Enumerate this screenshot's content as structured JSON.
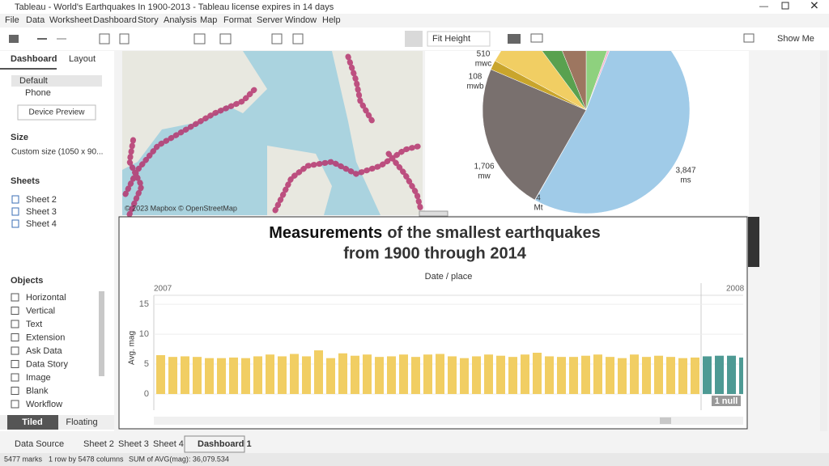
{
  "window_title": "Tableau - World's Earthquakes In 1900-2013 - Tableau license expires in 14 days",
  "menu": [
    "File",
    "Data",
    "Worksheet",
    "Dashboard",
    "Story",
    "Analysis",
    "Map",
    "Format",
    "Server",
    "Window",
    "Help"
  ],
  "toolbar": {
    "fit": "Fit Height",
    "show_me": "Show Me"
  },
  "left_panel": {
    "tabs": [
      "Dashboard",
      "Layout"
    ],
    "devices": [
      "Default",
      "Phone"
    ],
    "device_preview": "Device Preview",
    "size_heading": "Size",
    "size_value": "Custom size (1050 x 90...",
    "sheets_heading": "Sheets",
    "sheets": [
      "Sheet 2",
      "Sheet 3",
      "Sheet 4"
    ],
    "objects_heading": "Objects",
    "objects": [
      "Horizontal",
      "Vertical",
      "Text",
      "Extension",
      "Ask Data",
      "Data Story",
      "Image",
      "Blank",
      "Workflow"
    ],
    "layout_modes": [
      "Tiled",
      "Floating"
    ]
  },
  "map": {
    "credit": "© 2023 Mapbox © OpenStreetMap"
  },
  "chart_data": [
    {
      "type": "pie",
      "categories": [
        null,
        null,
        "ms",
        "Mt",
        "mw",
        "mwb",
        "mwc",
        null,
        null
      ],
      "values": [
        400,
        40,
        3847,
        4,
        1706,
        108,
        510,
        300,
        450
      ],
      "value_labels": [
        null,
        null,
        "3,847",
        "4",
        "1,706",
        "108",
        "510",
        null,
        null
      ],
      "colors": [
        "#8ed17e",
        "#f2b6cf",
        "#a0cbe8",
        "#d4a6c8",
        "#79706e",
        "#c9a52c",
        "#f1ce63",
        "#59a14f",
        "#9d7660"
      ]
    },
    {
      "type": "bar",
      "title": [
        "Measurements",
        "of the smallest earthquakes",
        "from 1900 through 2014"
      ],
      "x_title": "Date / place",
      "y_title": "Avg. mag",
      "ylim": [
        -2.7,
        16.5
      ],
      "yticks": [
        0,
        5,
        10,
        15
      ],
      "groups": [
        {
          "label": "2007",
          "color": "#f1ce63",
          "values": [
            6.5,
            6.2,
            6.3,
            6.2,
            6.0,
            6.0,
            6.1,
            6.0,
            6.3,
            6.6,
            6.3,
            6.7,
            6.3,
            7.3,
            6.0,
            6.8,
            6.4,
            6.6,
            6.2,
            6.3,
            6.6,
            6.2,
            6.6,
            6.7,
            6.3,
            6.0,
            6.3,
            6.6,
            6.4,
            6.2,
            6.6,
            6.9,
            6.3,
            6.2,
            6.2,
            6.4,
            6.6,
            6.2,
            6.0,
            6.6,
            6.2,
            6.4,
            6.2,
            6.0,
            6.1
          ]
        },
        {
          "label": "2008",
          "color": "#4e9a94",
          "values": [
            6.3,
            6.4,
            6.4,
            6.1
          ]
        }
      ],
      "null_indicator": "1 null"
    }
  ],
  "tabs": [
    "Data Source",
    "Sheet 2",
    "Sheet 3",
    "Sheet 4",
    "Dashboard 1"
  ],
  "status": [
    "5477 marks",
    "1 row by 5478 columns",
    "SUM of AVG(mag): 36,079.534"
  ]
}
